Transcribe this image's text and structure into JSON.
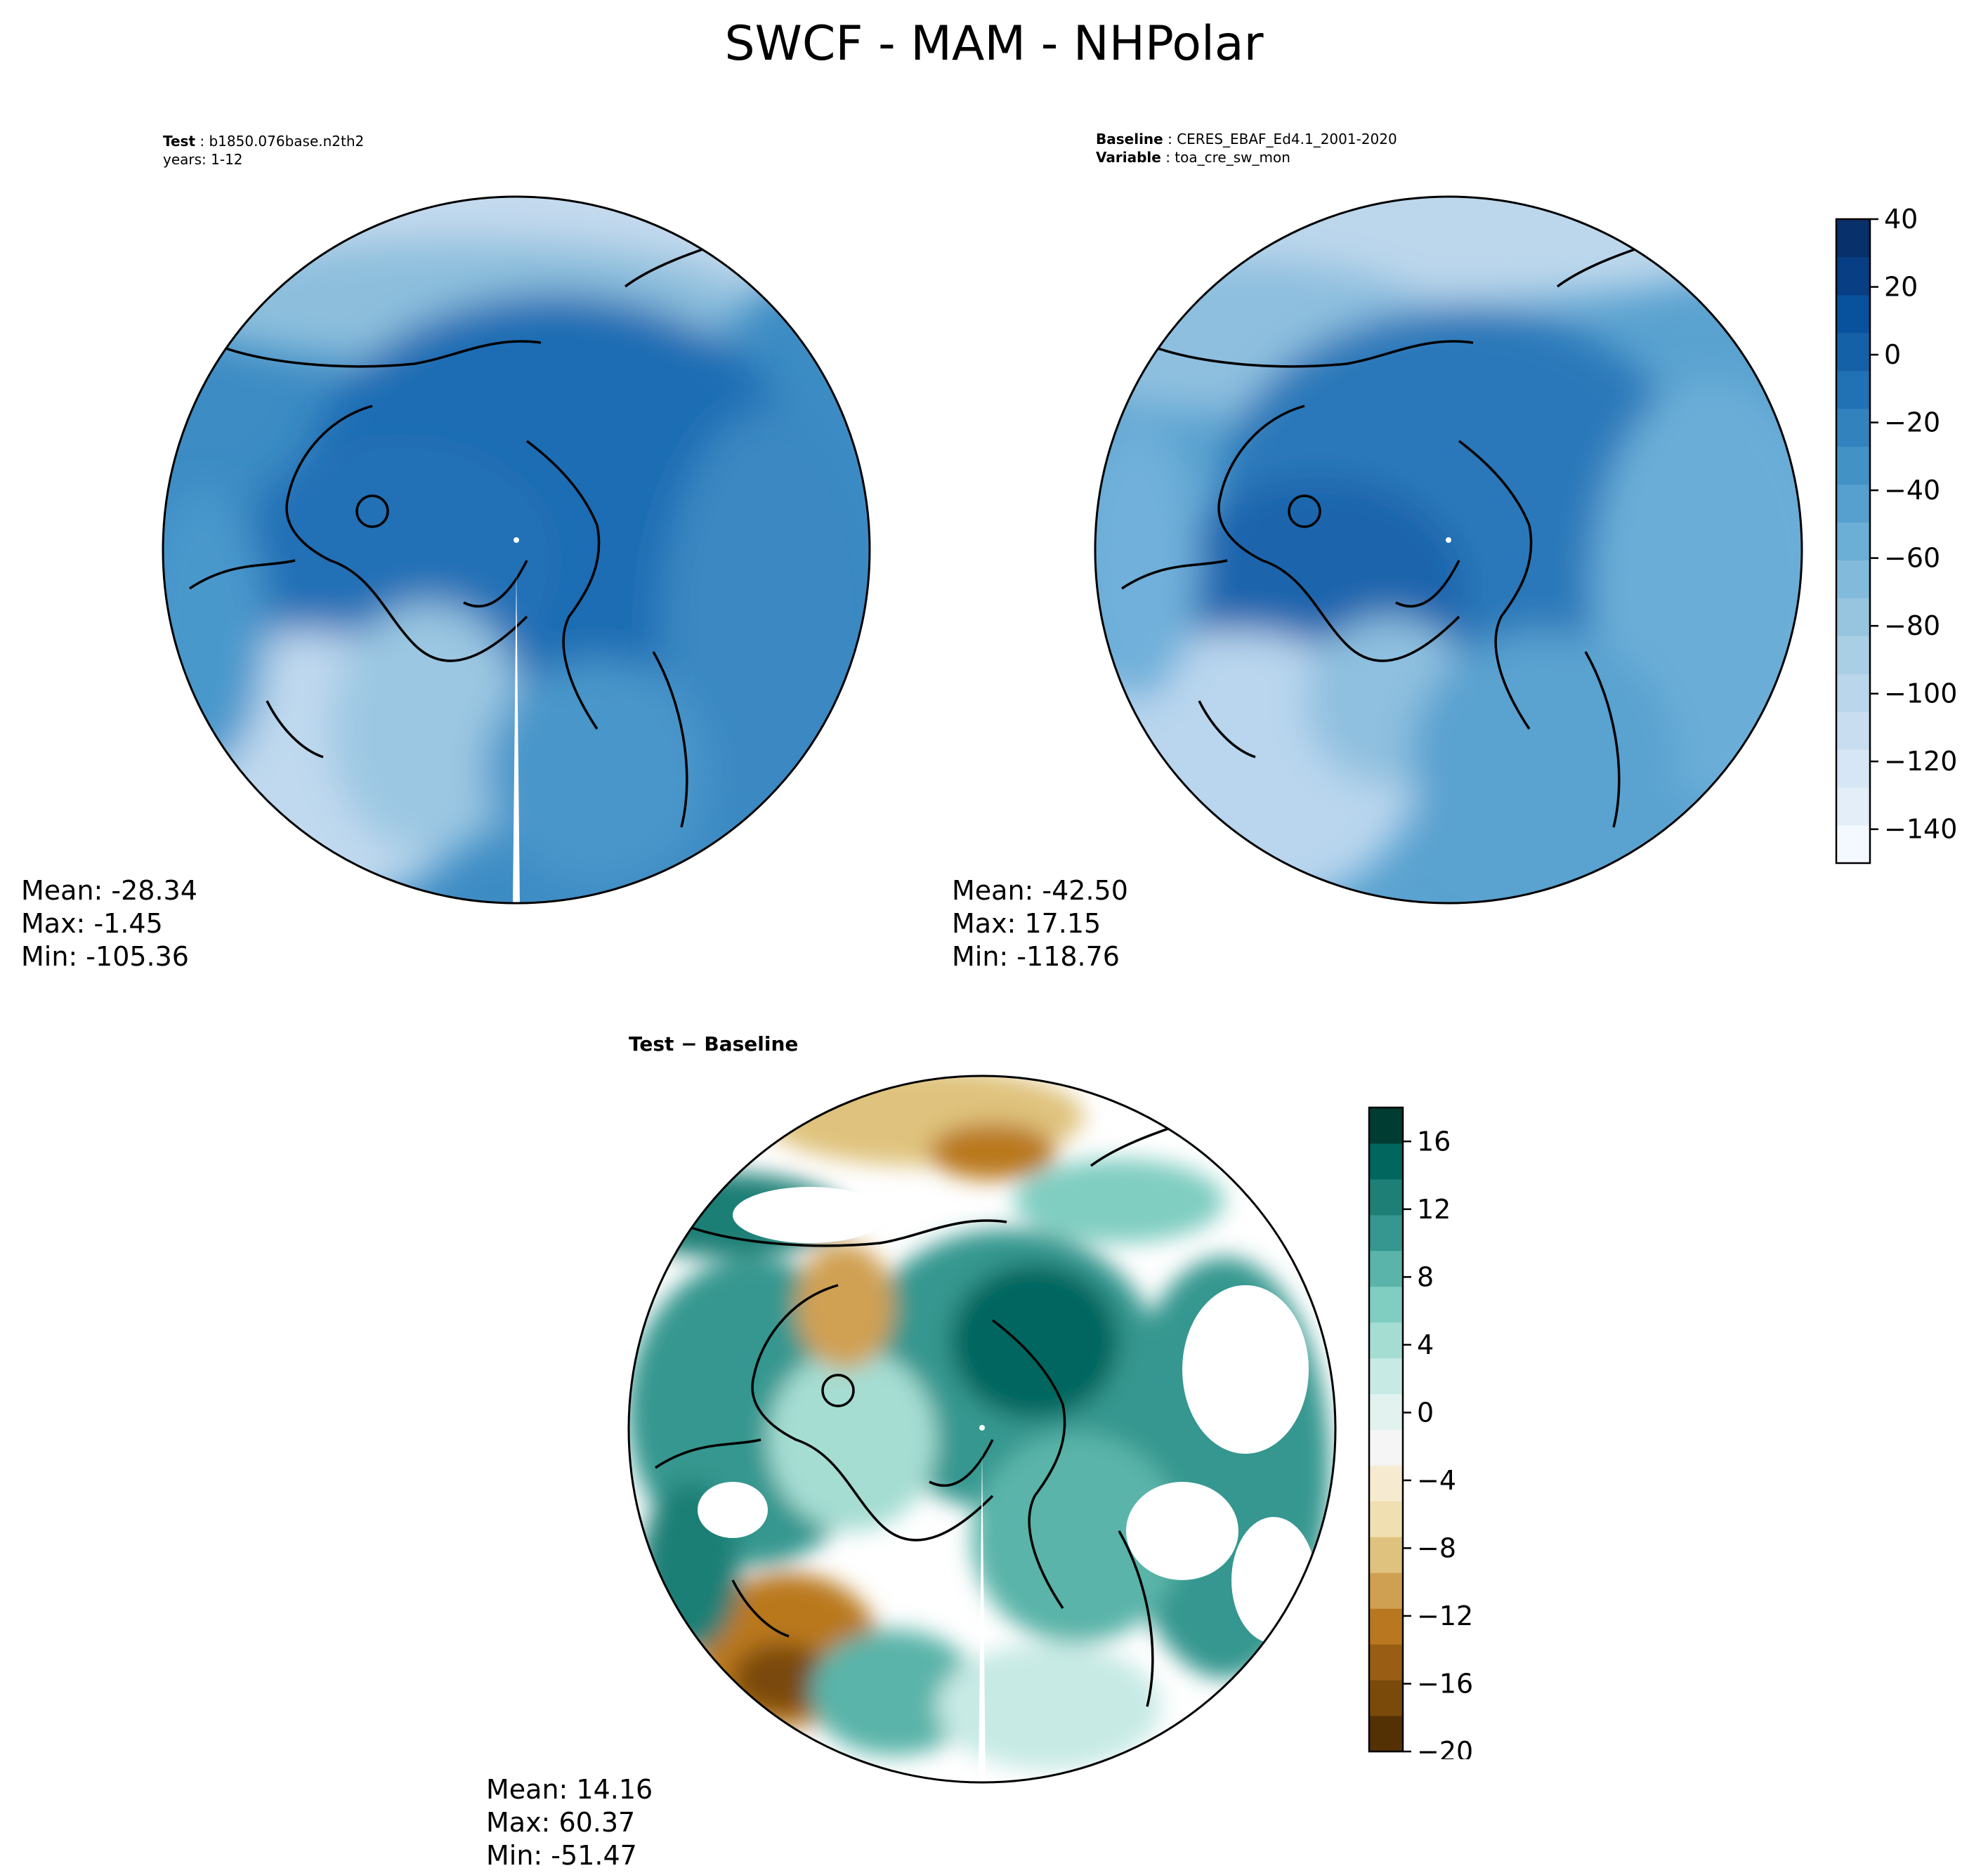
{
  "figure_title": "SWCF - MAM - NHPolar",
  "test_panel": {
    "label": "Test",
    "case": "b1850.076base.n2th2",
    "years": "years: 1-12",
    "stats": {
      "mean": "Mean: -28.34",
      "max": "Max: -1.45",
      "min": "Min: -105.36"
    }
  },
  "baseline_panel": {
    "baseline_label": "Baseline",
    "baseline_value": "CERES_EBAF_Ed4.1_2001-2020",
    "variable_label": "Variable",
    "variable_value": "toa_cre_sw_mon",
    "stats": {
      "mean": "Mean: -42.50",
      "max": "Max: 17.15",
      "min": "Min: -118.76"
    }
  },
  "diff_panel": {
    "title": "Test − Baseline",
    "stats": {
      "mean": "Mean: 14.16",
      "max": "Max: 60.37",
      "min": "Min: -51.47"
    }
  },
  "colors": {
    "blues": [
      "#f4f9ff",
      "#e3eef9",
      "#d6e6f4",
      "#c9ddf0",
      "#bad6eb",
      "#a9cfe5",
      "#97c4df",
      "#82badb",
      "#6baed6",
      "#55a0ce",
      "#4292c6",
      "#3282be",
      "#2171b5",
      "#1461a8",
      "#08519c",
      "#083f84",
      "#08306b"
    ],
    "brbg": [
      "#543005",
      "#7a4a0a",
      "#995d13",
      "#b9781f",
      "#d0a052",
      "#dfc27d",
      "#f0dfb0",
      "#f6ebd0",
      "#f5f5f5",
      "#e2f2ef",
      "#c7eae5",
      "#a5ddd3",
      "#80cdc1",
      "#5ab4a9",
      "#35978f",
      "#1d7f76",
      "#01665e",
      "#003c30"
    ]
  },
  "chart_data": [
    {
      "type": "heatmap",
      "panel": "test",
      "projection": "north polar stereographic",
      "colorbar": "shared with baseline",
      "stats": {
        "mean": -28.34,
        "max": -1.45,
        "min": -105.36
      }
    },
    {
      "type": "heatmap",
      "panel": "baseline",
      "projection": "north polar stereographic",
      "colorbar_ticks": [
        40,
        20,
        0,
        -20,
        -40,
        -60,
        -80,
        -100,
        -120,
        -140
      ],
      "colorbar_tick_labels": [
        "40",
        "20",
        "0",
        "−20",
        "−40",
        "−60",
        "−80",
        "−100",
        "−120",
        "−140"
      ],
      "colorbar_range": [
        -150,
        40
      ],
      "colormap": "Blues",
      "stats": {
        "mean": -42.5,
        "max": 17.15,
        "min": -118.76
      }
    },
    {
      "type": "heatmap",
      "panel": "difference",
      "projection": "north polar stereographic",
      "colorbar_ticks": [
        16,
        12,
        8,
        4,
        0,
        -4,
        -8,
        -12,
        -16,
        -20
      ],
      "colorbar_tick_labels": [
        "16",
        "12",
        "8",
        "4",
        "0",
        "−4",
        "−8",
        "−12",
        "−16",
        "−20"
      ],
      "colorbar_range": [
        -20,
        18
      ],
      "colormap": "BrBG",
      "stats": {
        "mean": 14.16,
        "max": 60.37,
        "min": -51.47
      }
    }
  ]
}
